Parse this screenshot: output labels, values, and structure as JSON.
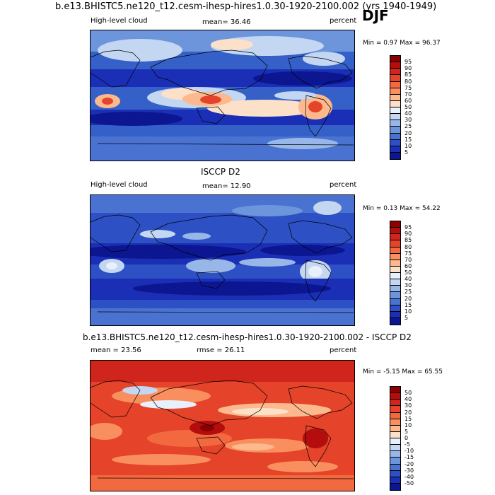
{
  "header": {
    "title": "b.e13.BHISTC5.ne120_t12.cesm-ihesp-hires1.0.30-1920-2100.002 (yrs 1940-1949)",
    "season": "DJF"
  },
  "panels": [
    {
      "id": "model",
      "variable": "High-level cloud",
      "mean_label": "mean=  36.46",
      "units": "percent",
      "minmax": "Min =   0.97 Max =  96.37",
      "colorbar": {
        "labels": [
          "95",
          "90",
          "85",
          "80",
          "75",
          "70",
          "60",
          "50",
          "40",
          "30",
          "25",
          "20",
          "15",
          "10",
          "5"
        ],
        "colors": [
          "#8b0000",
          "#b30d0d",
          "#d0251c",
          "#e5432a",
          "#f2683f",
          "#f98f5e",
          "#fdb98e",
          "#fde0c8",
          "#e8f0fb",
          "#c3d6f2",
          "#98b7e8",
          "#6d95dc",
          "#4a73d1",
          "#2d50c4",
          "#1a2fb5",
          "#0b1690"
        ]
      }
    },
    {
      "id": "obs",
      "title": "ISCCP D2",
      "variable": "High-level cloud",
      "mean_label": "mean=  12.90",
      "units": "percent",
      "minmax": "Min =   0.13 Max =  54.22",
      "colorbar": {
        "labels": [
          "95",
          "90",
          "85",
          "80",
          "75",
          "70",
          "60",
          "50",
          "40",
          "30",
          "25",
          "20",
          "15",
          "10",
          "5"
        ],
        "colors": [
          "#8b0000",
          "#b30d0d",
          "#d0251c",
          "#e5432a",
          "#f2683f",
          "#f98f5e",
          "#fdb98e",
          "#fde0c8",
          "#e8f0fb",
          "#c3d6f2",
          "#98b7e8",
          "#6d95dc",
          "#4a73d1",
          "#2d50c4",
          "#1a2fb5",
          "#0b1690"
        ]
      }
    },
    {
      "id": "diff",
      "title": "b.e13.BHISTC5.ne120_t12.cesm-ihesp-hires1.0.30-1920-2100.002 - ISCCP D2",
      "mean_label": "mean =  23.56",
      "rmse_label": "rmse =  26.11",
      "units": "percent",
      "minmax": "Min =  -5.15 Max =  65.55",
      "colorbar": {
        "labels": [
          "50",
          "40",
          "30",
          "20",
          "15",
          "10",
          "5",
          "0",
          "-5",
          "-10",
          "-15",
          "-20",
          "-30",
          "-40",
          "-50"
        ],
        "colors": [
          "#8b0000",
          "#b30d0d",
          "#d0251c",
          "#e5432a",
          "#f2683f",
          "#f98f5e",
          "#fdb98e",
          "#fde0c8",
          "#e8f0fb",
          "#c3d6f2",
          "#98b7e8",
          "#6d95dc",
          "#4a73d1",
          "#2d50c4",
          "#1a2fb5",
          "#0b1690"
        ]
      }
    }
  ]
}
